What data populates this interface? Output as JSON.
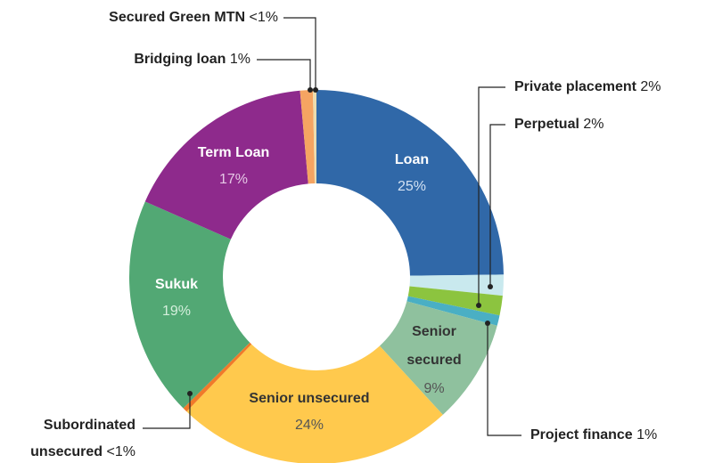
{
  "chart_data": {
    "type": "donut",
    "categories": [
      "Loan",
      "Private placement",
      "Perpetual",
      "Project finance",
      "Senior secured",
      "Senior unsecured",
      "Subordinated unsecured",
      "Sukuk",
      "Term Loan",
      "Bridging loan",
      "Secured Green MTN"
    ],
    "values": [
      24.8,
      1.8,
      1.7,
      0.9,
      9,
      24,
      0.4,
      19,
      17,
      1.1,
      0.3
    ],
    "value_labels": [
      "25%",
      "2%",
      "2%",
      "1%",
      "9%",
      "24%",
      "<1%",
      "19%",
      "17%",
      "1%",
      "<1%"
    ],
    "colors": [
      "#3068a8",
      "#c9e9ee",
      "#8cc43f",
      "#4aafc4",
      "#8fc19e",
      "#ffc94d",
      "#f07a2a",
      "#52a874",
      "#8e2a8c",
      "#f5a462",
      "#ecdcae"
    ]
  }
}
